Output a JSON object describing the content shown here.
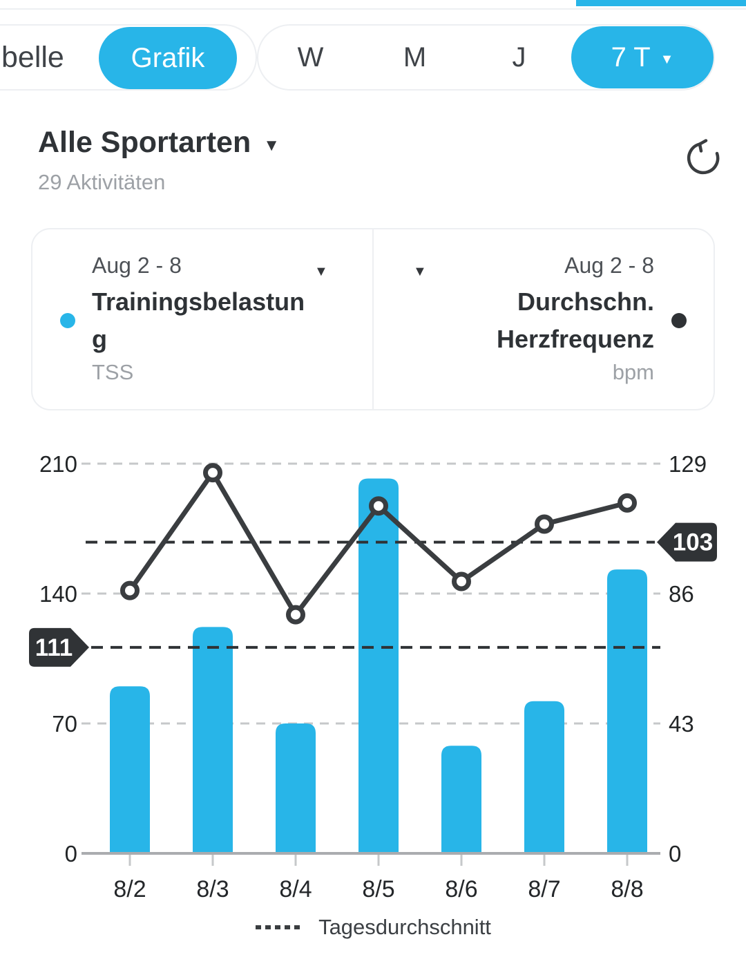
{
  "colors": {
    "accent": "#28b5e8",
    "line_dark": "#3a3d40",
    "grid": "#c6c8ca",
    "axis": "#aaacaf",
    "badge_bg": "#303336",
    "badge_text": "#ffffff"
  },
  "icons": {
    "caret_down": "▼",
    "refresh": "rotate-ccw-arrow",
    "series_dot_blue": "●",
    "series_dot_dark": "●"
  },
  "topbar": {
    "view_tabs": {
      "partial_left_label": "belle",
      "selected_label": "Grafik"
    },
    "range_tabs": {
      "options": [
        "W",
        "M",
        "J"
      ],
      "selected_label": "7 T"
    }
  },
  "header": {
    "title": "Alle Sportarten",
    "subtitle": "29 Aktivitäten"
  },
  "cards": {
    "left": {
      "date_range": "Aug 2 - 8",
      "metric": "Trainingsbelastung",
      "unit": "TSS"
    },
    "right": {
      "date_range": "Aug 2 - 8",
      "metric": "Durchschn. Herzfrequenz",
      "unit": "bpm"
    }
  },
  "legend": {
    "label": "Tagesdurchschnitt"
  },
  "chart_data": {
    "type": "bar",
    "subtype": "dual-axis combo: bars (left axis) + line with markers (right axis)",
    "categories": [
      "8/2",
      "8/3",
      "8/4",
      "8/5",
      "8/6",
      "8/7",
      "8/8"
    ],
    "series": [
      {
        "name": "Trainingsbelastung",
        "type": "bar",
        "axis": "left",
        "unit": "TSS",
        "color": "#28b5e8",
        "values": [
          90,
          122,
          70,
          202,
          58,
          82,
          153
        ],
        "average": 111
      },
      {
        "name": "Durchschn. Herzfrequenz",
        "type": "line",
        "axis": "right",
        "unit": "bpm",
        "color": "#3a3d40",
        "values": [
          87,
          126,
          79,
          115,
          90,
          109,
          116
        ],
        "average": 103
      }
    ],
    "left_axis": {
      "ticks": [
        0,
        70,
        140,
        210
      ],
      "max": 210
    },
    "right_axis": {
      "ticks": [
        0,
        43,
        86,
        129
      ],
      "max": 129
    },
    "average_lines": [
      {
        "axis": "left",
        "value": 111,
        "label": "111",
        "badge_side": "left"
      },
      {
        "axis": "right",
        "value": 103,
        "label": "103",
        "badge_side": "right"
      }
    ],
    "legend": "Tagesdurchschnitt",
    "grid": "horizontal-dashed"
  }
}
